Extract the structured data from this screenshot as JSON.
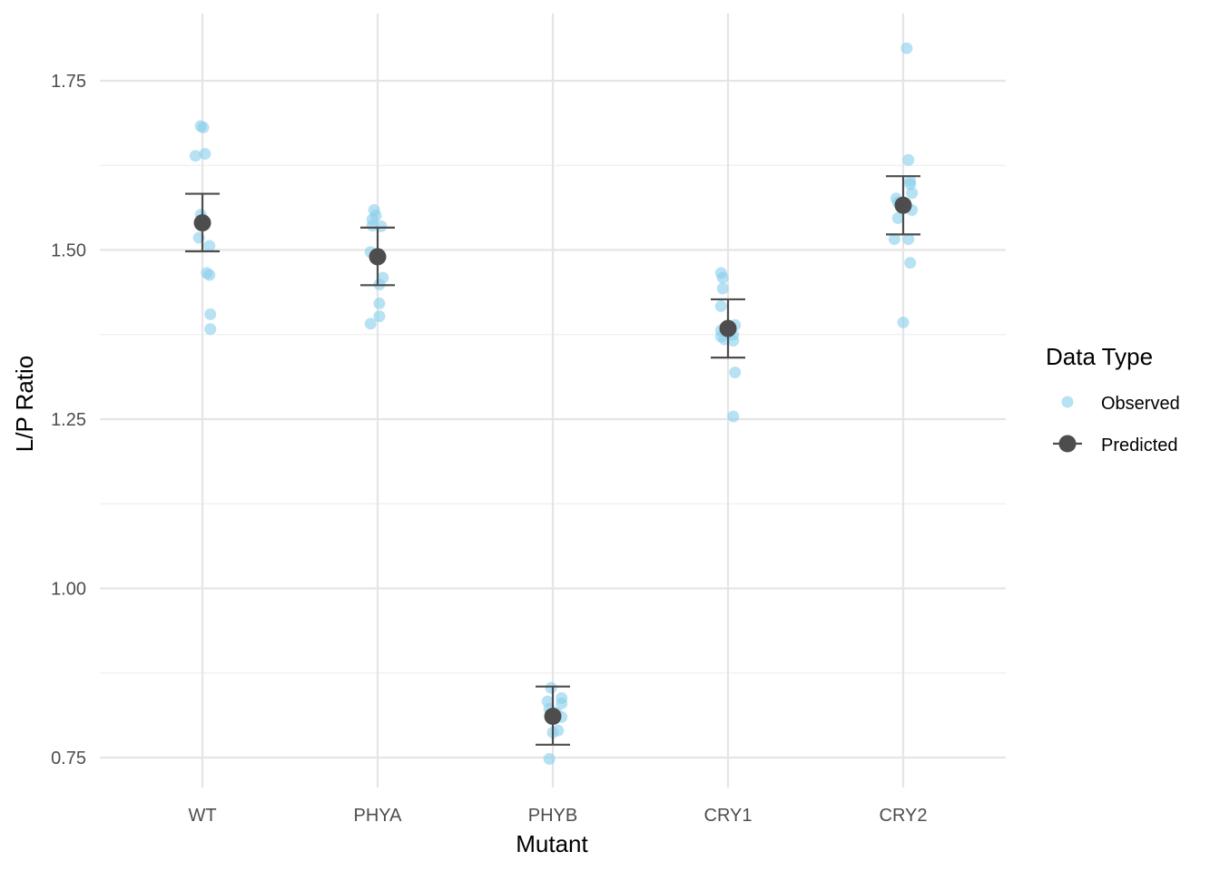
{
  "chart_data": {
    "type": "scatter",
    "xlabel": "Mutant",
    "ylabel": "L/P Ratio",
    "categories": [
      "WT",
      "PHYA",
      "PHYB",
      "CRY1",
      "CRY2"
    ],
    "ylim": [
      0.7,
      1.82
    ],
    "yticks": [
      0.75,
      1.0,
      1.25,
      1.5,
      1.75
    ],
    "ytick_labels": [
      "0.75",
      "1.00",
      "1.25",
      "1.50",
      "1.75"
    ],
    "grid": true,
    "legend": {
      "title": "Data Type",
      "placement": "right",
      "entries": [
        {
          "label": "Observed",
          "color": "#87CEEB"
        },
        {
          "label": "Predicted",
          "color": "#4d4d4d"
        }
      ]
    },
    "series": [
      {
        "name": "Observed",
        "color": "#87CEEB",
        "points": [
          {
            "category": "WT",
            "jitter": -0.01,
            "y": 1.683
          },
          {
            "category": "WT",
            "jitter": 0.005,
            "y": 1.681
          },
          {
            "category": "WT",
            "jitter": 0.015,
            "y": 1.642
          },
          {
            "category": "WT",
            "jitter": -0.04,
            "y": 1.639
          },
          {
            "category": "WT",
            "jitter": -0.01,
            "y": 1.552
          },
          {
            "category": "WT",
            "jitter": -0.02,
            "y": 1.518
          },
          {
            "category": "WT",
            "jitter": 0.04,
            "y": 1.506
          },
          {
            "category": "WT",
            "jitter": 0.025,
            "y": 1.466
          },
          {
            "category": "WT",
            "jitter": 0.04,
            "y": 1.463
          },
          {
            "category": "WT",
            "jitter": 0.045,
            "y": 1.405
          },
          {
            "category": "WT",
            "jitter": 0.045,
            "y": 1.383
          },
          {
            "category": "PHYA",
            "jitter": -0.02,
            "y": 1.559
          },
          {
            "category": "PHYA",
            "jitter": -0.01,
            "y": 1.551
          },
          {
            "category": "PHYA",
            "jitter": -0.03,
            "y": 1.545
          },
          {
            "category": "PHYA",
            "jitter": -0.03,
            "y": 1.536
          },
          {
            "category": "PHYA",
            "jitter": 0.02,
            "y": 1.535
          },
          {
            "category": "PHYA",
            "jitter": -0.04,
            "y": 1.497
          },
          {
            "category": "PHYA",
            "jitter": 0.03,
            "y": 1.459
          },
          {
            "category": "PHYA",
            "jitter": 0.01,
            "y": 1.449
          },
          {
            "category": "PHYA",
            "jitter": 0.01,
            "y": 1.421
          },
          {
            "category": "PHYA",
            "jitter": 0.01,
            "y": 1.402
          },
          {
            "category": "PHYA",
            "jitter": -0.04,
            "y": 1.391
          },
          {
            "category": "PHYB",
            "jitter": -0.01,
            "y": 0.853
          },
          {
            "category": "PHYB",
            "jitter": 0.05,
            "y": 0.838
          },
          {
            "category": "PHYB",
            "jitter": -0.03,
            "y": 0.833
          },
          {
            "category": "PHYB",
            "jitter": 0.05,
            "y": 0.83
          },
          {
            "category": "PHYB",
            "jitter": -0.02,
            "y": 0.822
          },
          {
            "category": "PHYB",
            "jitter": 0.02,
            "y": 0.816
          },
          {
            "category": "PHYB",
            "jitter": 0.05,
            "y": 0.81
          },
          {
            "category": "PHYB",
            "jitter": 0.03,
            "y": 0.79
          },
          {
            "category": "PHYB",
            "jitter": 0.0,
            "y": 0.787
          },
          {
            "category": "PHYB",
            "jitter": -0.02,
            "y": 0.748
          },
          {
            "category": "CRY1",
            "jitter": -0.04,
            "y": 1.466
          },
          {
            "category": "CRY1",
            "jitter": -0.03,
            "y": 1.459
          },
          {
            "category": "CRY1",
            "jitter": -0.03,
            "y": 1.443
          },
          {
            "category": "CRY1",
            "jitter": -0.04,
            "y": 1.417
          },
          {
            "category": "CRY1",
            "jitter": 0.04,
            "y": 1.389
          },
          {
            "category": "CRY1",
            "jitter": -0.04,
            "y": 1.381
          },
          {
            "category": "CRY1",
            "jitter": 0.03,
            "y": 1.375
          },
          {
            "category": "CRY1",
            "jitter": -0.04,
            "y": 1.372
          },
          {
            "category": "CRY1",
            "jitter": -0.02,
            "y": 1.368
          },
          {
            "category": "CRY1",
            "jitter": 0.03,
            "y": 1.366
          },
          {
            "category": "CRY1",
            "jitter": 0.04,
            "y": 1.319
          },
          {
            "category": "CRY1",
            "jitter": 0.03,
            "y": 1.254
          },
          {
            "category": "CRY2",
            "jitter": 0.02,
            "y": 1.798
          },
          {
            "category": "CRY2",
            "jitter": 0.03,
            "y": 1.633
          },
          {
            "category": "CRY2",
            "jitter": 0.04,
            "y": 1.602
          },
          {
            "category": "CRY2",
            "jitter": 0.04,
            "y": 1.597
          },
          {
            "category": "CRY2",
            "jitter": 0.05,
            "y": 1.584
          },
          {
            "category": "CRY2",
            "jitter": -0.04,
            "y": 1.576
          },
          {
            "category": "CRY2",
            "jitter": -0.03,
            "y": 1.57
          },
          {
            "category": "CRY2",
            "jitter": 0.05,
            "y": 1.559
          },
          {
            "category": "CRY2",
            "jitter": -0.03,
            "y": 1.547
          },
          {
            "category": "CRY2",
            "jitter": -0.05,
            "y": 1.516
          },
          {
            "category": "CRY2",
            "jitter": 0.03,
            "y": 1.516
          },
          {
            "category": "CRY2",
            "jitter": 0.04,
            "y": 1.481
          },
          {
            "category": "CRY2",
            "jitter": 0.0,
            "y": 1.393
          }
        ]
      },
      {
        "name": "Predicted",
        "color": "#4d4d4d",
        "points": [
          {
            "category": "WT",
            "y": 1.54,
            "ymin": 1.498,
            "ymax": 1.583
          },
          {
            "category": "PHYA",
            "y": 1.49,
            "ymin": 1.448,
            "ymax": 1.533
          },
          {
            "category": "PHYB",
            "y": 0.811,
            "ymin": 0.769,
            "ymax": 0.855
          },
          {
            "category": "CRY1",
            "y": 1.384,
            "ymin": 1.341,
            "ymax": 1.427
          },
          {
            "category": "CRY2",
            "y": 1.566,
            "ymin": 1.523,
            "ymax": 1.609
          }
        ]
      }
    ]
  }
}
